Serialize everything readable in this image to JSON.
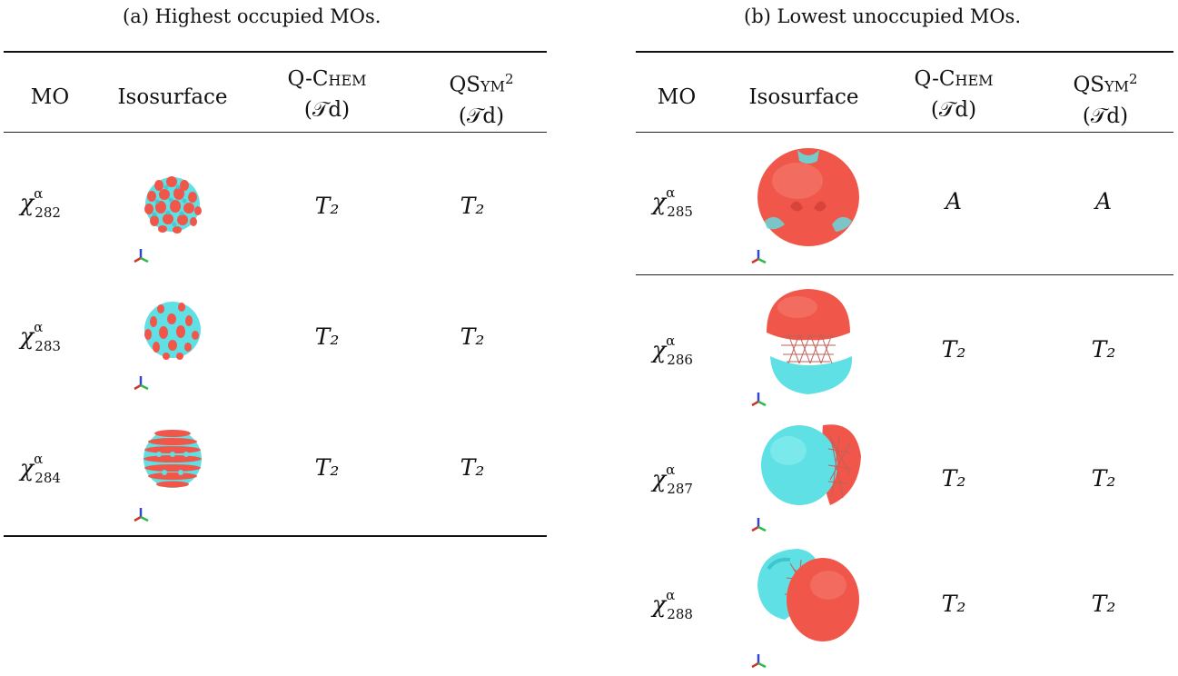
{
  "panels": [
    {
      "caption": "(a) Highest occupied MOs.",
      "headers": {
        "mo": "MO",
        "isosurface": "Isosurface",
        "qchem_name": "Q-Chem",
        "qchem_group": "(𝒯d)",
        "qsym_name": "QSym",
        "qsym_sup": "2",
        "qsym_group": "(𝒯d)"
      },
      "rows": [
        {
          "symbol": "χ",
          "sup": "α",
          "sub": "282",
          "qchem": "T₂",
          "qsym": "T₂",
          "isosurface": "dense-lobes-red-cyan"
        },
        {
          "symbol": "χ",
          "sup": "α",
          "sub": "283",
          "qchem": "T₂",
          "qsym": "T₂",
          "isosurface": "dense-lobes-cyan-red"
        },
        {
          "symbol": "χ",
          "sup": "α",
          "sub": "284",
          "qchem": "T₂",
          "qsym": "T₂",
          "isosurface": "banded-lobes-red-cyan"
        }
      ]
    },
    {
      "caption": "(b) Lowest unoccupied MOs.",
      "headers": {
        "mo": "MO",
        "isosurface": "Isosurface",
        "qchem_name": "Q-Chem",
        "qchem_group": "(𝒯d)",
        "qsym_name": "QSym",
        "qsym_sup": "2",
        "qsym_group": "(𝒯d)"
      },
      "rows": [
        {
          "symbol": "χ",
          "sup": "α",
          "sub": "285",
          "qchem": "A",
          "qsym": "A",
          "isosurface": "red-sphere"
        },
        {
          "symbol": "χ",
          "sup": "α",
          "sub": "286",
          "qchem": "T₂",
          "qsym": "T₂",
          "isosurface": "red-top-cyan-bottom"
        },
        {
          "symbol": "χ",
          "sup": "α",
          "sub": "287",
          "qchem": "T₂",
          "qsym": "T₂",
          "isosurface": "cyan-left-red-right"
        },
        {
          "symbol": "χ",
          "sup": "α",
          "sub": "288",
          "qchem": "T₂",
          "qsym": "T₂",
          "isosurface": "cyan-left-red-front"
        }
      ]
    }
  ],
  "colors": {
    "red_lobe": "#f0574a",
    "cyan_lobe": "#5fe0e4",
    "axis_x": "#d0342c",
    "axis_y": "#2fb84a",
    "axis_z": "#3048c8"
  }
}
